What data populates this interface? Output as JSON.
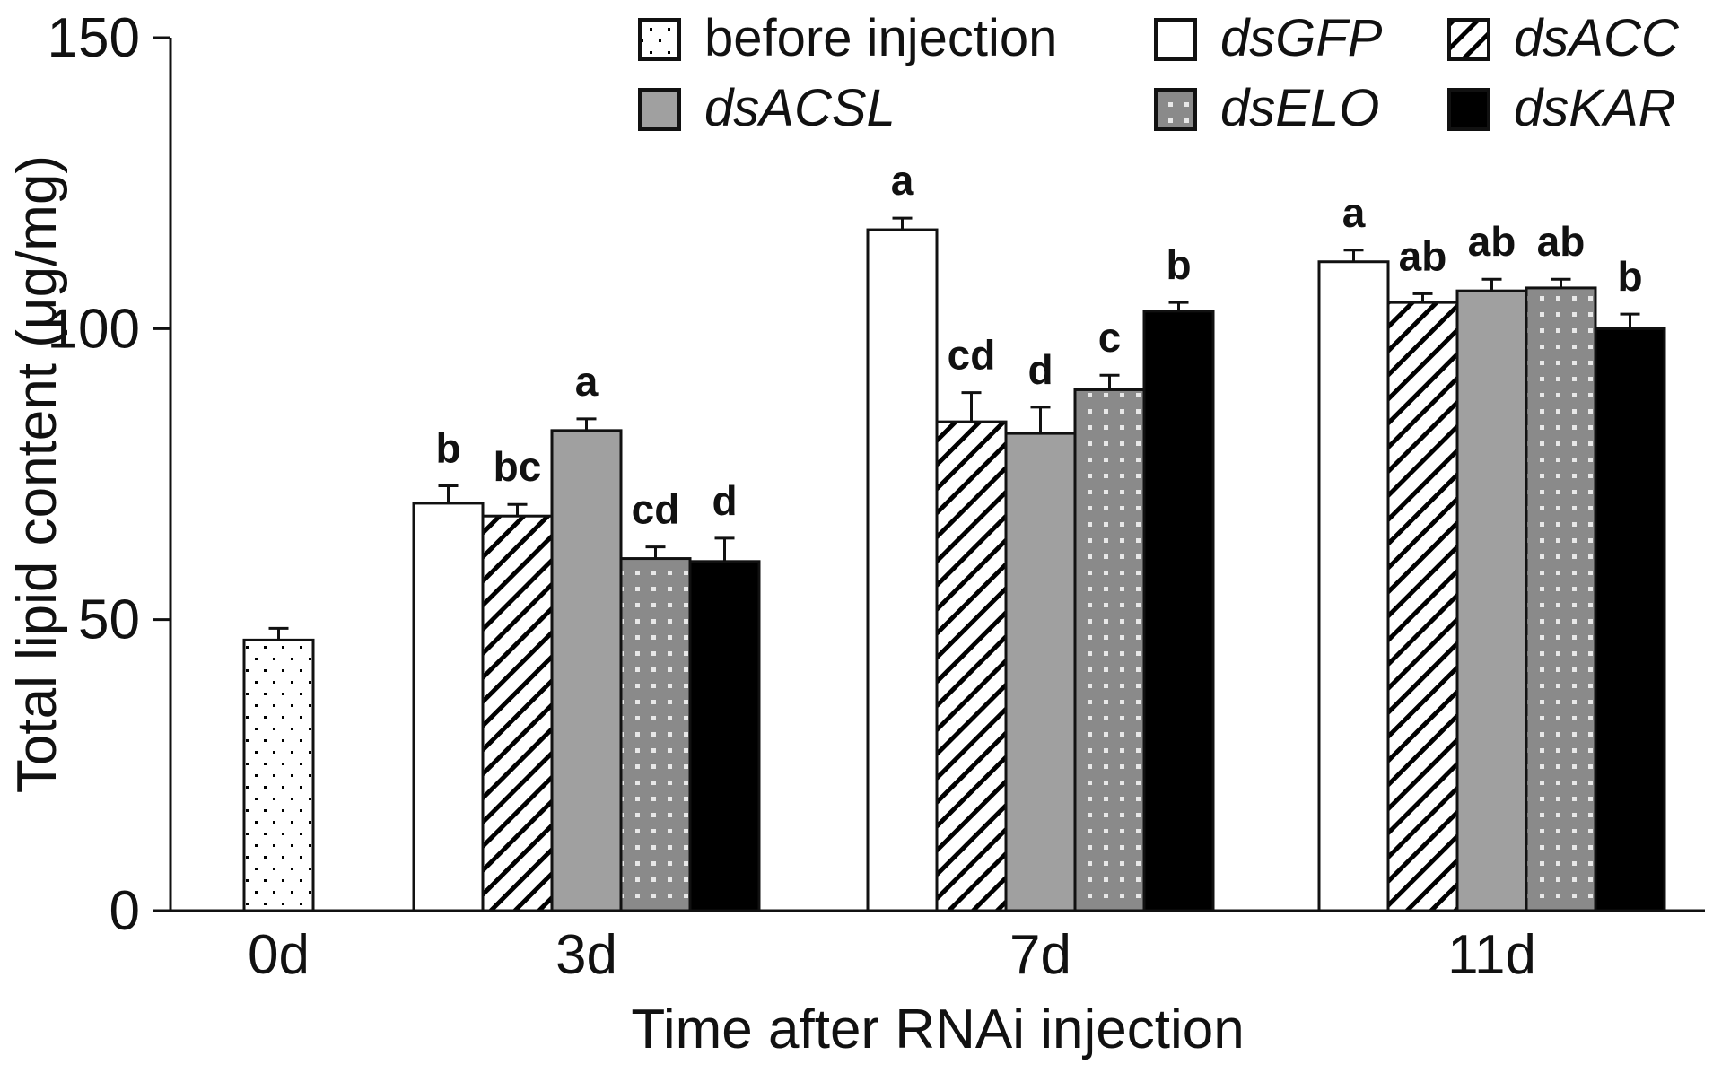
{
  "chart_data": {
    "type": "bar",
    "title": "",
    "xlabel": "Time after RNAi injection",
    "ylabel": "Total lipid content (μg/mg)",
    "ylim": [
      0,
      150
    ],
    "yticks": [
      0,
      50,
      100,
      150
    ],
    "grid": false,
    "legend_position": "top-right",
    "categories": [
      "0d",
      "3d",
      "7d",
      "11d"
    ],
    "series": [
      {
        "name": "before injection",
        "pattern": "dots",
        "fill": "#ffffff",
        "italic": false,
        "values": [
          46.5,
          null,
          null,
          null
        ],
        "errors": [
          2,
          null,
          null,
          null
        ],
        "labels": [
          "",
          "",
          "",
          ""
        ]
      },
      {
        "name": "dsGFP",
        "pattern": "solid",
        "fill": "#ffffff",
        "italic": true,
        "values": [
          null,
          70,
          117,
          111.5
        ],
        "errors": [
          null,
          3,
          2,
          2
        ],
        "labels": [
          "",
          "b",
          "a",
          "a"
        ]
      },
      {
        "name": "dsACC",
        "pattern": "hatch",
        "fill": "#ffffff",
        "italic": true,
        "values": [
          null,
          67.8,
          84,
          104.5
        ],
        "errors": [
          null,
          2,
          5,
          1.5
        ],
        "labels": [
          "",
          "bc",
          "cd",
          "ab"
        ]
      },
      {
        "name": "dsACSL",
        "pattern": "solid",
        "fill": "#a0a0a0",
        "italic": true,
        "values": [
          null,
          82.5,
          82,
          106.5
        ],
        "errors": [
          null,
          2,
          4.5,
          2
        ],
        "labels": [
          "",
          "a",
          "d",
          "ab"
        ]
      },
      {
        "name": "dsELO",
        "pattern": "gridgray",
        "fill": "#8a8a8a",
        "italic": true,
        "values": [
          null,
          60.5,
          89.5,
          107
        ],
        "errors": [
          null,
          2,
          2.5,
          1.5
        ],
        "labels": [
          "",
          "cd",
          "c",
          "ab"
        ]
      },
      {
        "name": "dsKAR",
        "pattern": "solid",
        "fill": "#000000",
        "italic": true,
        "values": [
          null,
          60,
          103,
          100
        ],
        "errors": [
          null,
          4,
          1.5,
          2.5
        ],
        "labels": [
          "",
          "d",
          "b",
          "b"
        ]
      }
    ]
  }
}
